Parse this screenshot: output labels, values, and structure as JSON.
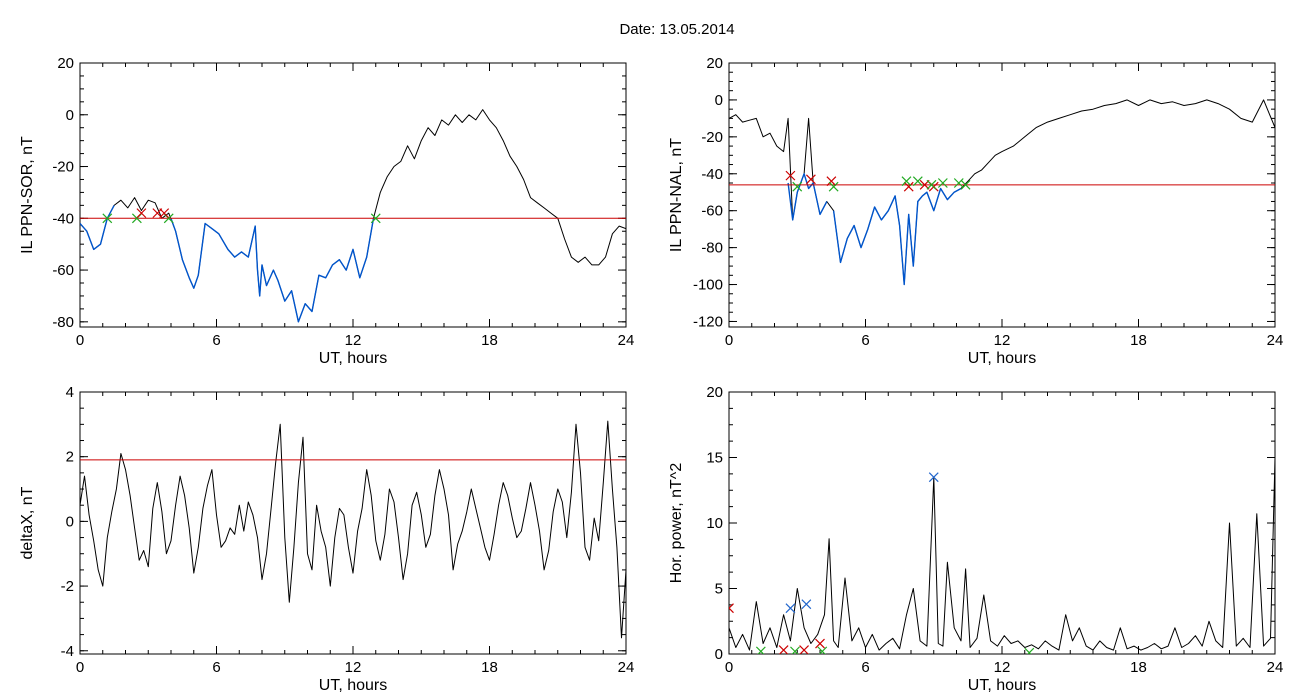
{
  "figure_title": "Date:  13.05.2014",
  "colors": {
    "trace": "#000000",
    "bay": "#0055cc",
    "threshold": "#cc0000",
    "start_marker": "#cc0000",
    "end_marker": "#22aa22",
    "peak_marker": "#2266cc"
  },
  "chart_data": [
    {
      "id": "sor",
      "type": "line",
      "title": "",
      "xlabel": "UT, hours",
      "ylabel": "IL PPN-SOR, nT",
      "xlim": [
        0,
        24
      ],
      "ylim": [
        -82,
        20
      ],
      "xticks": [
        0,
        6,
        12,
        18,
        24
      ],
      "yticks": [
        20,
        0,
        -20,
        -40,
        -60,
        -80
      ],
      "threshold": -40,
      "series": [
        {
          "color": "#000000",
          "x": [
            0,
            0.3,
            0.6,
            0.9,
            1.2,
            1.5,
            1.8,
            2.1,
            2.4,
            2.7,
            3.0,
            3.3,
            3.6,
            3.9,
            4.2,
            4.5,
            4.8,
            5.0,
            5.2,
            5.5,
            5.8,
            6.1,
            6.5,
            6.8,
            7.1,
            7.4,
            7.7,
            7.8,
            7.9,
            8.0,
            8.2,
            8.5,
            8.7,
            9.0,
            9.3,
            9.6,
            9.9,
            10.2,
            10.5,
            10.8,
            11.1,
            11.4,
            11.7,
            12.0,
            12.3,
            12.6,
            12.9,
            13.2,
            13.5,
            13.8,
            14.1,
            14.4,
            14.7,
            15.0,
            15.3,
            15.6,
            15.9,
            16.2,
            16.5,
            16.8,
            17.1,
            17.4,
            17.7,
            18.0,
            18.3,
            18.6,
            18.9,
            19.2,
            19.5,
            19.8,
            20.1,
            20.4,
            20.7,
            21.0,
            21.3,
            21.6,
            21.9,
            22.2,
            22.5,
            22.8,
            23.1,
            23.4,
            23.7,
            24.0
          ],
          "y": [
            -42,
            -45,
            -52,
            -50,
            -40,
            -35,
            -33,
            -36,
            -32,
            -37,
            -33,
            -34,
            -40,
            -38,
            -45,
            -56,
            -63,
            -67,
            -62,
            -42,
            -44,
            -46,
            -52,
            -55,
            -53,
            -55,
            -43,
            -60,
            -70,
            -58,
            -66,
            -60,
            -64,
            -72,
            -68,
            -80,
            -73,
            -76,
            -62,
            -63,
            -58,
            -56,
            -60,
            -52,
            -63,
            -55,
            -40,
            -30,
            -24,
            -20,
            -18,
            -12,
            -17,
            -10,
            -5,
            -8,
            -2,
            -4,
            0,
            -3,
            0,
            -2,
            2,
            -2,
            -5,
            -10,
            -16,
            -20,
            -25,
            -32,
            -34,
            -36,
            -38,
            -40,
            -48,
            -55,
            -57,
            -55,
            -58,
            -58,
            -55,
            -46,
            -43,
            -44
          ]
        },
        {
          "color": "#0055cc",
          "x": [
            0,
            0.3,
            0.6,
            0.9,
            1.2,
            1.5
          ],
          "y": [
            -42,
            -45,
            -52,
            -50,
            -40,
            -35
          ]
        },
        {
          "color": "#0055cc",
          "x": [
            4.0,
            4.2,
            4.5,
            4.8,
            5.0,
            5.2,
            5.5,
            5.8,
            6.1,
            6.5,
            6.8,
            7.1,
            7.4,
            7.7,
            7.8,
            7.9,
            8.0,
            8.2,
            8.5,
            8.7,
            9.0,
            9.3,
            9.6,
            9.9,
            10.2,
            10.5,
            10.8,
            11.1,
            11.4,
            11.7,
            12.0,
            12.3,
            12.6,
            12.9
          ],
          "y": [
            -40,
            -45,
            -56,
            -63,
            -67,
            -62,
            -42,
            -44,
            -46,
            -52,
            -55,
            -53,
            -55,
            -43,
            -60,
            -70,
            -58,
            -66,
            -60,
            -64,
            -72,
            -68,
            -80,
            -73,
            -76,
            -62,
            -63,
            -58,
            -56,
            -60,
            -52,
            -63,
            -55,
            -40
          ]
        }
      ],
      "markers": [
        {
          "symbol": "x",
          "color": "#22aa22",
          "x": [
            1.2,
            2.5,
            3.9,
            13.0
          ],
          "y": [
            -40,
            -40,
            -40,
            -40
          ]
        },
        {
          "symbol": "x",
          "color": "#cc0000",
          "x": [
            2.7,
            3.4,
            3.7
          ],
          "y": [
            -38,
            -38,
            -38
          ]
        }
      ]
    },
    {
      "id": "nal",
      "type": "line",
      "title": "",
      "xlabel": "UT, hours",
      "ylabel": "IL PPN-NAL, nT",
      "xlim": [
        0,
        24
      ],
      "ylim": [
        -123,
        20
      ],
      "xticks": [
        0,
        6,
        12,
        18,
        24
      ],
      "yticks": [
        20,
        0,
        -20,
        -40,
        -60,
        -80,
        -100,
        -120
      ],
      "threshold": -46,
      "series": [
        {
          "color": "#000000",
          "x": [
            0,
            0.3,
            0.6,
            0.9,
            1.2,
            1.5,
            1.8,
            2.1,
            2.4,
            2.6,
            2.8,
            3.0,
            3.3,
            3.5,
            3.7,
            4.0,
            4.3,
            4.6,
            4.9,
            5.2,
            5.5,
            5.8,
            6.1,
            6.4,
            6.7,
            7.0,
            7.3,
            7.5,
            7.7,
            7.9,
            8.1,
            8.3,
            8.5,
            8.7,
            9.0,
            9.3,
            9.6,
            9.9,
            10.2,
            10.5,
            10.8,
            11.1,
            11.4,
            11.7,
            12.0,
            12.5,
            13.0,
            13.5,
            14.0,
            14.5,
            15.0,
            15.5,
            16.0,
            16.5,
            17.0,
            17.5,
            18.0,
            18.5,
            19.0,
            19.5,
            20.0,
            20.5,
            21.0,
            21.5,
            22.0,
            22.5,
            23.0,
            23.5,
            24.0
          ],
          "y": [
            -10,
            -8,
            -12,
            -11,
            -10,
            -20,
            -18,
            -25,
            -28,
            -10,
            -65,
            -50,
            -40,
            -10,
            -45,
            -62,
            -55,
            -60,
            -88,
            -75,
            -68,
            -80,
            -70,
            -58,
            -65,
            -60,
            -52,
            -68,
            -100,
            -62,
            -90,
            -55,
            -52,
            -50,
            -60,
            -48,
            -54,
            -50,
            -48,
            -44,
            -40,
            -38,
            -34,
            -30,
            -28,
            -25,
            -20,
            -15,
            -12,
            -10,
            -8,
            -6,
            -5,
            -3,
            -2,
            0,
            -3,
            0,
            -2,
            -1,
            -3,
            -2,
            0,
            -2,
            -5,
            -10,
            -12,
            0,
            -15
          ]
        },
        {
          "color": "#0055cc",
          "x": [
            2.6,
            2.8,
            3.0,
            3.3,
            3.5,
            3.7,
            4.0,
            4.3
          ],
          "y": [
            -45,
            -65,
            -50,
            -40,
            -48,
            -45,
            -62,
            -55
          ]
        },
        {
          "color": "#0055cc",
          "x": [
            4.6,
            4.9,
            5.2,
            5.5,
            5.8,
            6.1,
            6.4,
            6.7,
            7.0,
            7.3,
            7.5,
            7.7,
            7.9,
            8.1,
            8.3,
            8.5,
            8.7,
            9.0,
            9.3,
            9.6,
            9.9,
            10.2
          ],
          "y": [
            -60,
            -88,
            -75,
            -68,
            -80,
            -70,
            -58,
            -65,
            -60,
            -52,
            -68,
            -100,
            -62,
            -90,
            -55,
            -52,
            -50,
            -60,
            -48,
            -54,
            -50,
            -48
          ]
        }
      ],
      "markers": [
        {
          "symbol": "x",
          "color": "#cc0000",
          "x": [
            2.7,
            3.6,
            4.5,
            7.9,
            8.6,
            9.0
          ],
          "y": [
            -41,
            -43,
            -44,
            -47,
            -46,
            -47
          ]
        },
        {
          "symbol": "x",
          "color": "#22aa22",
          "x": [
            3.0,
            4.6,
            7.8,
            8.3,
            8.9,
            9.4,
            10.1,
            10.4
          ],
          "y": [
            -47,
            -47,
            -44,
            -44,
            -46,
            -45,
            -45,
            -46
          ]
        }
      ]
    },
    {
      "id": "deltax",
      "type": "line",
      "title": "",
      "xlabel": "UT, hours",
      "ylabel": "deltaX, nT",
      "xlim": [
        0,
        24
      ],
      "ylim": [
        -4.1,
        4
      ],
      "xticks": [
        0,
        6,
        12,
        18,
        24
      ],
      "yticks": [
        4,
        2,
        0,
        -2,
        -4
      ],
      "threshold": 1.9,
      "series": [
        {
          "color": "#000000",
          "x": [
            0,
            0.2,
            0.4,
            0.6,
            0.8,
            1.0,
            1.2,
            1.4,
            1.6,
            1.8,
            2.0,
            2.2,
            2.4,
            2.6,
            2.8,
            3.0,
            3.2,
            3.4,
            3.6,
            3.8,
            4.0,
            4.2,
            4.4,
            4.6,
            4.8,
            5.0,
            5.2,
            5.4,
            5.6,
            5.8,
            6.0,
            6.2,
            6.4,
            6.6,
            6.8,
            7.0,
            7.2,
            7.4,
            7.6,
            7.8,
            8.0,
            8.2,
            8.4,
            8.6,
            8.8,
            9.0,
            9.2,
            9.4,
            9.6,
            9.8,
            10.0,
            10.2,
            10.4,
            10.6,
            10.8,
            11.0,
            11.2,
            11.4,
            11.6,
            11.8,
            12.0,
            12.2,
            12.4,
            12.6,
            12.8,
            13.0,
            13.2,
            13.4,
            13.6,
            13.8,
            14.0,
            14.2,
            14.4,
            14.6,
            14.8,
            15.0,
            15.2,
            15.4,
            15.6,
            15.8,
            16.0,
            16.2,
            16.4,
            16.6,
            16.8,
            17.0,
            17.2,
            17.4,
            17.6,
            17.8,
            18.0,
            18.2,
            18.4,
            18.6,
            18.8,
            19.0,
            19.2,
            19.4,
            19.6,
            19.8,
            20.0,
            20.2,
            20.4,
            20.6,
            20.8,
            21.0,
            21.2,
            21.4,
            21.6,
            21.8,
            22.0,
            22.2,
            22.4,
            22.6,
            22.8,
            23.0,
            23.2,
            23.4,
            23.6,
            23.8,
            24.0
          ],
          "y": [
            0.5,
            1.4,
            0.2,
            -0.6,
            -1.5,
            -2.0,
            -0.5,
            0.3,
            1.0,
            2.1,
            1.6,
            0.8,
            -0.2,
            -1.2,
            -0.9,
            -1.4,
            0.4,
            1.2,
            0.3,
            -1.0,
            -0.6,
            0.5,
            1.4,
            0.8,
            -0.2,
            -1.6,
            -0.8,
            0.4,
            1.1,
            1.6,
            0.2,
            -0.8,
            -0.6,
            -0.2,
            -0.4,
            0.5,
            -0.3,
            0.6,
            0.2,
            -0.5,
            -1.8,
            -1.0,
            0.4,
            1.8,
            3.0,
            -0.5,
            -2.5,
            -0.8,
            1.2,
            2.6,
            -1.0,
            -1.5,
            0.5,
            -0.3,
            -0.8,
            -2.0,
            -0.5,
            0.4,
            0.2,
            -0.8,
            -1.6,
            -0.3,
            0.4,
            1.6,
            0.8,
            -0.6,
            -1.2,
            -0.4,
            1.0,
            0.6,
            -0.5,
            -1.8,
            -1.0,
            0.5,
            0.9,
            0.2,
            -0.8,
            -0.4,
            0.8,
            1.6,
            1.0,
            0.2,
            -1.5,
            -0.7,
            -0.3,
            0.3,
            1.0,
            0.4,
            -0.2,
            -0.8,
            -1.2,
            -0.4,
            0.5,
            1.2,
            0.8,
            0.1,
            -0.5,
            -0.3,
            0.4,
            1.2,
            0.5,
            -0.3,
            -1.5,
            -0.9,
            0.3,
            1.0,
            0.6,
            -0.5,
            0.9,
            3.0,
            1.5,
            -0.8,
            -1.2,
            0.1,
            -0.6,
            1.2,
            3.1,
            1.0,
            -0.8,
            -3.6,
            -1.5
          ]
        }
      ],
      "markers": []
    },
    {
      "id": "power",
      "type": "line",
      "title": "",
      "xlabel": "UT, hours",
      "ylabel": "Hor. power, nT^2",
      "xlim": [
        0,
        24
      ],
      "ylim": [
        0,
        20
      ],
      "xticks": [
        0,
        6,
        12,
        18,
        24
      ],
      "yticks": [
        20,
        15,
        10,
        5,
        0
      ],
      "threshold": null,
      "series": [
        {
          "color": "#000000",
          "x": [
            0,
            0.3,
            0.6,
            0.9,
            1.2,
            1.5,
            1.8,
            2.1,
            2.4,
            2.7,
            3.0,
            3.3,
            3.6,
            3.9,
            4.2,
            4.4,
            4.6,
            4.8,
            5.1,
            5.4,
            5.7,
            6.0,
            6.3,
            6.6,
            6.9,
            7.2,
            7.5,
            7.8,
            8.1,
            8.4,
            8.7,
            9.0,
            9.2,
            9.4,
            9.6,
            9.9,
            10.2,
            10.4,
            10.6,
            10.9,
            11.2,
            11.5,
            11.8,
            12.1,
            12.4,
            12.7,
            13.0,
            13.3,
            13.6,
            13.9,
            14.2,
            14.5,
            14.8,
            15.1,
            15.4,
            15.7,
            16.0,
            16.3,
            16.6,
            16.9,
            17.2,
            17.5,
            17.8,
            18.1,
            18.4,
            18.7,
            19.0,
            19.3,
            19.6,
            19.9,
            20.2,
            20.5,
            20.8,
            21.1,
            21.4,
            21.7,
            22.0,
            22.3,
            22.6,
            22.9,
            23.2,
            23.5,
            23.8,
            24.0
          ],
          "y": [
            2.0,
            0.5,
            1.5,
            0.3,
            4.0,
            0.8,
            2.0,
            0.5,
            3.0,
            1.0,
            5.0,
            2.0,
            0.8,
            1.5,
            3.0,
            8.8,
            1.0,
            0.5,
            5.8,
            1.0,
            2.0,
            0.5,
            1.5,
            0.3,
            0.8,
            1.2,
            0.4,
            3.0,
            5.0,
            1.0,
            0.6,
            13.5,
            0.8,
            0.6,
            7.0,
            2.0,
            1.0,
            6.5,
            0.5,
            1.2,
            4.5,
            1.0,
            0.6,
            1.4,
            0.8,
            1.0,
            0.5,
            0.7,
            0.4,
            1.0,
            0.6,
            0.3,
            3.0,
            1.0,
            2.0,
            0.6,
            0.3,
            1.0,
            0.5,
            0.3,
            2.0,
            0.4,
            0.6,
            0.3,
            0.5,
            0.8,
            0.4,
            0.6,
            2.0,
            0.5,
            0.8,
            1.4,
            0.6,
            2.5,
            1.0,
            0.5,
            10.0,
            0.6,
            1.2,
            0.5,
            10.7,
            0.6,
            1.2,
            15.0
          ]
        }
      ],
      "markers": [
        {
          "symbol": "x",
          "color": "#cc0000",
          "x": [
            0.0,
            2.4,
            3.3,
            4.0
          ],
          "y": [
            3.5,
            0.3,
            0.3,
            0.8
          ]
        },
        {
          "symbol": "x",
          "color": "#22aa22",
          "x": [
            1.4,
            2.9,
            4.1,
            13.2
          ],
          "y": [
            0.2,
            0.2,
            0.2,
            0.1
          ]
        },
        {
          "symbol": "x",
          "color": "#2266cc",
          "x": [
            2.7,
            3.4,
            9.0
          ],
          "y": [
            3.5,
            3.8,
            13.5
          ]
        }
      ]
    }
  ]
}
